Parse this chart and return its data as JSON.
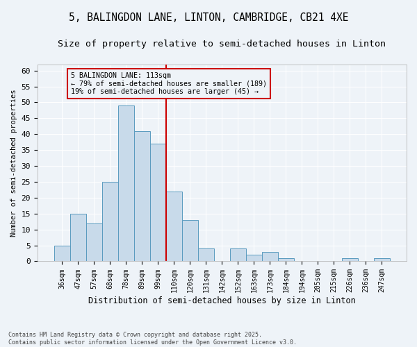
{
  "title1": "5, BALINGDON LANE, LINTON, CAMBRIDGE, CB21 4XE",
  "title2": "Size of property relative to semi-detached houses in Linton",
  "xlabel": "Distribution of semi-detached houses by size in Linton",
  "ylabel": "Number of semi-detached properties",
  "footnote1": "Contains HM Land Registry data © Crown copyright and database right 2025.",
  "footnote2": "Contains public sector information licensed under the Open Government Licence v3.0.",
  "bin_labels": [
    "36sqm",
    "47sqm",
    "57sqm",
    "68sqm",
    "78sqm",
    "89sqm",
    "99sqm",
    "110sqm",
    "120sqm",
    "131sqm",
    "142sqm",
    "152sqm",
    "163sqm",
    "173sqm",
    "184sqm",
    "194sqm",
    "205sqm",
    "215sqm",
    "226sqm",
    "236sqm",
    "247sqm"
  ],
  "bar_values": [
    5,
    15,
    12,
    25,
    49,
    41,
    37,
    22,
    13,
    4,
    0,
    4,
    2,
    3,
    1,
    0,
    0,
    0,
    1,
    0,
    1
  ],
  "bar_color": "#c8daea",
  "bar_edge_color": "#5a9bbf",
  "vline_color": "#cc0000",
  "annotation_title": "5 BALINGDON LANE: 113sqm",
  "annotation_line1": "← 79% of semi-detached houses are smaller (189)",
  "annotation_line2": "19% of semi-detached houses are larger (45) →",
  "annotation_box_color": "#cc0000",
  "ylim": [
    0,
    62
  ],
  "yticks": [
    0,
    5,
    10,
    15,
    20,
    25,
    30,
    35,
    40,
    45,
    50,
    55,
    60
  ],
  "background_color": "#eef3f8",
  "grid_color": "#ffffff",
  "title1_fontsize": 10.5,
  "title2_fontsize": 9.5
}
